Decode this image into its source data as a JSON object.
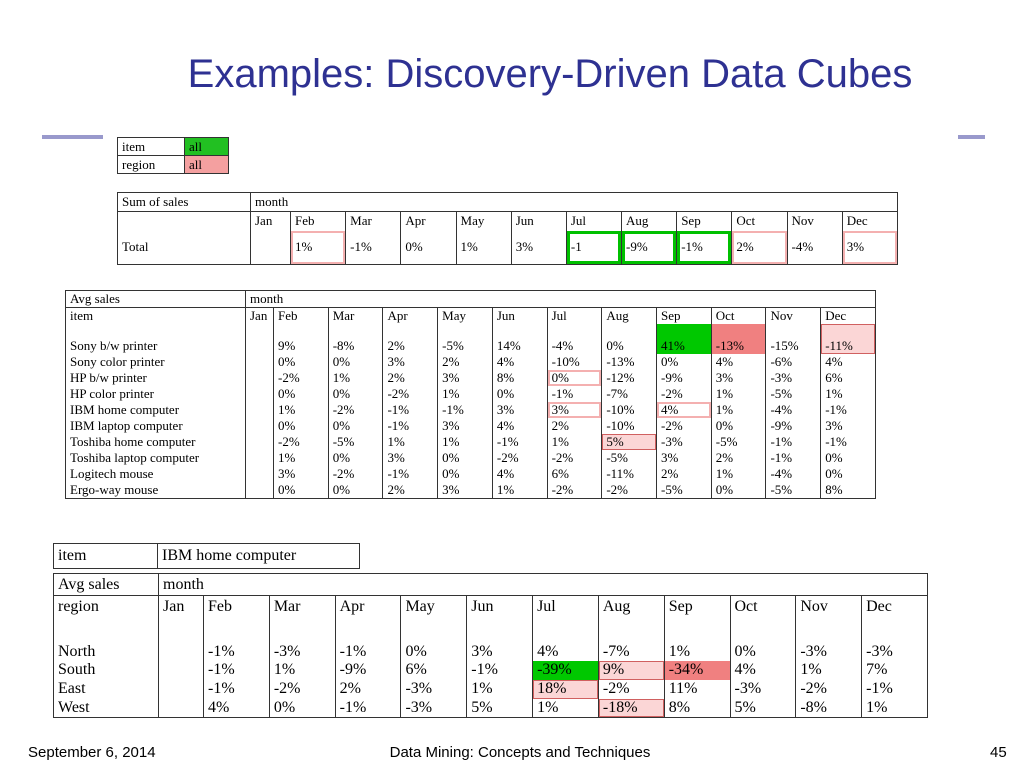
{
  "title": "Examples: Discovery-Driven Data Cubes",
  "selector": {
    "rows": [
      [
        "item",
        "all"
      ],
      [
        "region",
        "all"
      ]
    ],
    "colors": [
      "#22c022",
      "#f4a0a0"
    ]
  },
  "sales_table": {
    "corner": "Sum of sales",
    "dimension": "month",
    "row_header": null,
    "months": [
      "Jan",
      "Feb",
      "Mar",
      "Apr",
      "May",
      "Jun",
      "Jul",
      "Aug",
      "Sep",
      "Oct",
      "Nov",
      "Dec"
    ],
    "rows": [
      {
        "label": "Total",
        "cells": [
          null,
          "1%",
          "-1%",
          "0%",
          "1%",
          "3%",
          "-1",
          "-9%",
          "-1%",
          "2%",
          "-4%",
          "3%"
        ],
        "hl": [
          null,
          "pb",
          null,
          null,
          null,
          null,
          "gb",
          "gb",
          "gb",
          "pb",
          null,
          "pb"
        ]
      }
    ]
  },
  "item_table": {
    "corner": "Avg sales",
    "dimension": "month",
    "row_header": "item",
    "months": [
      "Jan",
      "Feb",
      "Mar",
      "Apr",
      "May",
      "Jun",
      "Jul",
      "Aug",
      "Sep",
      "Oct",
      "Nov",
      "Dec"
    ],
    "rows": [
      {
        "label": "Sony b/w printer",
        "cells": [
          null,
          "9%",
          "-8%",
          "2%",
          "-5%",
          "14%",
          "-4%",
          "0%",
          "41%",
          "-13%",
          "-15%",
          "-11%"
        ],
        "hl": [
          null,
          null,
          null,
          null,
          null,
          null,
          null,
          null,
          "gf",
          "rf",
          null,
          "pf"
        ]
      },
      {
        "label": "Sony color printer",
        "cells": [
          null,
          "0%",
          "0%",
          "3%",
          "2%",
          "4%",
          "-10%",
          "-13%",
          "0%",
          "4%",
          "-6%",
          "4%"
        ],
        "hl": [
          null,
          null,
          null,
          null,
          null,
          null,
          null,
          null,
          null,
          null,
          null,
          null
        ]
      },
      {
        "label": "HP b/w printer",
        "cells": [
          null,
          "-2%",
          "1%",
          "2%",
          "3%",
          "8%",
          "0%",
          "-12%",
          "-9%",
          "3%",
          "-3%",
          "6%"
        ],
        "hl": [
          null,
          null,
          null,
          null,
          null,
          null,
          "pb",
          null,
          null,
          null,
          null,
          null
        ]
      },
      {
        "label": "HP color printer",
        "cells": [
          null,
          "0%",
          "0%",
          "-2%",
          "1%",
          "0%",
          "-1%",
          "-7%",
          "-2%",
          "1%",
          "-5%",
          "1%"
        ],
        "hl": [
          null,
          null,
          null,
          null,
          null,
          null,
          null,
          null,
          null,
          null,
          null,
          null
        ]
      },
      {
        "label": "IBM home computer",
        "cells": [
          null,
          "1%",
          "-2%",
          "-1%",
          "-1%",
          "3%",
          "3%",
          "-10%",
          "4%",
          "1%",
          "-4%",
          "-1%"
        ],
        "hl": [
          null,
          null,
          null,
          null,
          null,
          null,
          "pb",
          null,
          "pb",
          null,
          null,
          null
        ]
      },
      {
        "label": "IBM laptop computer",
        "cells": [
          null,
          "0%",
          "0%",
          "-1%",
          "3%",
          "4%",
          "2%",
          "-10%",
          "-2%",
          "0%",
          "-9%",
          "3%"
        ],
        "hl": [
          null,
          null,
          null,
          null,
          null,
          null,
          null,
          null,
          null,
          null,
          null,
          null
        ]
      },
      {
        "label": "Toshiba home computer",
        "cells": [
          null,
          "-2%",
          "-5%",
          "1%",
          "1%",
          "-1%",
          "1%",
          "5%",
          "-3%",
          "-5%",
          "-1%",
          "-1%"
        ],
        "hl": [
          null,
          null,
          null,
          null,
          null,
          null,
          null,
          "pf",
          null,
          null,
          null,
          null
        ]
      },
      {
        "label": "Toshiba laptop computer",
        "cells": [
          null,
          "1%",
          "0%",
          "3%",
          "0%",
          "-2%",
          "-2%",
          "-5%",
          "3%",
          "2%",
          "-1%",
          "0%"
        ],
        "hl": [
          null,
          null,
          null,
          null,
          null,
          null,
          null,
          null,
          null,
          null,
          null,
          null
        ]
      },
      {
        "label": "Logitech mouse",
        "cells": [
          null,
          "3%",
          "-2%",
          "-1%",
          "0%",
          "4%",
          "6%",
          "-11%",
          "2%",
          "1%",
          "-4%",
          "0%"
        ],
        "hl": [
          null,
          null,
          null,
          null,
          null,
          null,
          null,
          null,
          null,
          null,
          null,
          null
        ]
      },
      {
        "label": "Ergo-way mouse",
        "cells": [
          null,
          "0%",
          "0%",
          "2%",
          "3%",
          "1%",
          "-2%",
          "-2%",
          "-5%",
          "0%",
          "-5%",
          "8%"
        ],
        "hl": [
          null,
          null,
          null,
          null,
          null,
          null,
          null,
          null,
          null,
          null,
          null,
          null
        ]
      }
    ]
  },
  "drill_item": [
    "item",
    "IBM home computer"
  ],
  "region_table": {
    "corner": "Avg sales",
    "dimension": "month",
    "row_header": "region",
    "months": [
      "Jan",
      "Feb",
      "Mar",
      "Apr",
      "May",
      "Jun",
      "Jul",
      "Aug",
      "Sep",
      "Oct",
      "Nov",
      "Dec"
    ],
    "rows": [
      {
        "label": "North",
        "cells": [
          null,
          "-1%",
          "-3%",
          "-1%",
          "0%",
          "3%",
          "4%",
          "-7%",
          "1%",
          "0%",
          "-3%",
          "-3%"
        ],
        "hl": [
          null,
          null,
          null,
          null,
          null,
          null,
          null,
          null,
          null,
          null,
          null,
          null
        ]
      },
      {
        "label": "South",
        "cells": [
          null,
          "-1%",
          "1%",
          "-9%",
          "6%",
          "-1%",
          "-39%",
          "9%",
          "-34%",
          "4%",
          "1%",
          "7%"
        ],
        "hl": [
          null,
          null,
          null,
          null,
          null,
          null,
          "gf",
          "pf",
          "rf",
          null,
          null,
          null
        ]
      },
      {
        "label": "East",
        "cells": [
          null,
          "-1%",
          "-2%",
          "2%",
          "-3%",
          "1%",
          "18%",
          "-2%",
          "11%",
          "-3%",
          "-2%",
          "-1%"
        ],
        "hl": [
          null,
          null,
          null,
          null,
          null,
          null,
          "pf",
          null,
          null,
          null,
          null,
          null
        ]
      },
      {
        "label": "West",
        "cells": [
          null,
          "4%",
          "0%",
          "-1%",
          "-3%",
          "5%",
          "1%",
          "-18%",
          "8%",
          "5%",
          "-8%",
          "1%"
        ],
        "hl": [
          null,
          null,
          null,
          null,
          null,
          null,
          null,
          "pf",
          null,
          null,
          null,
          null
        ]
      }
    ]
  },
  "footer": {
    "date": "September 6, 2014",
    "course": "Data Mining: Concepts and Techniques",
    "page": "45"
  }
}
